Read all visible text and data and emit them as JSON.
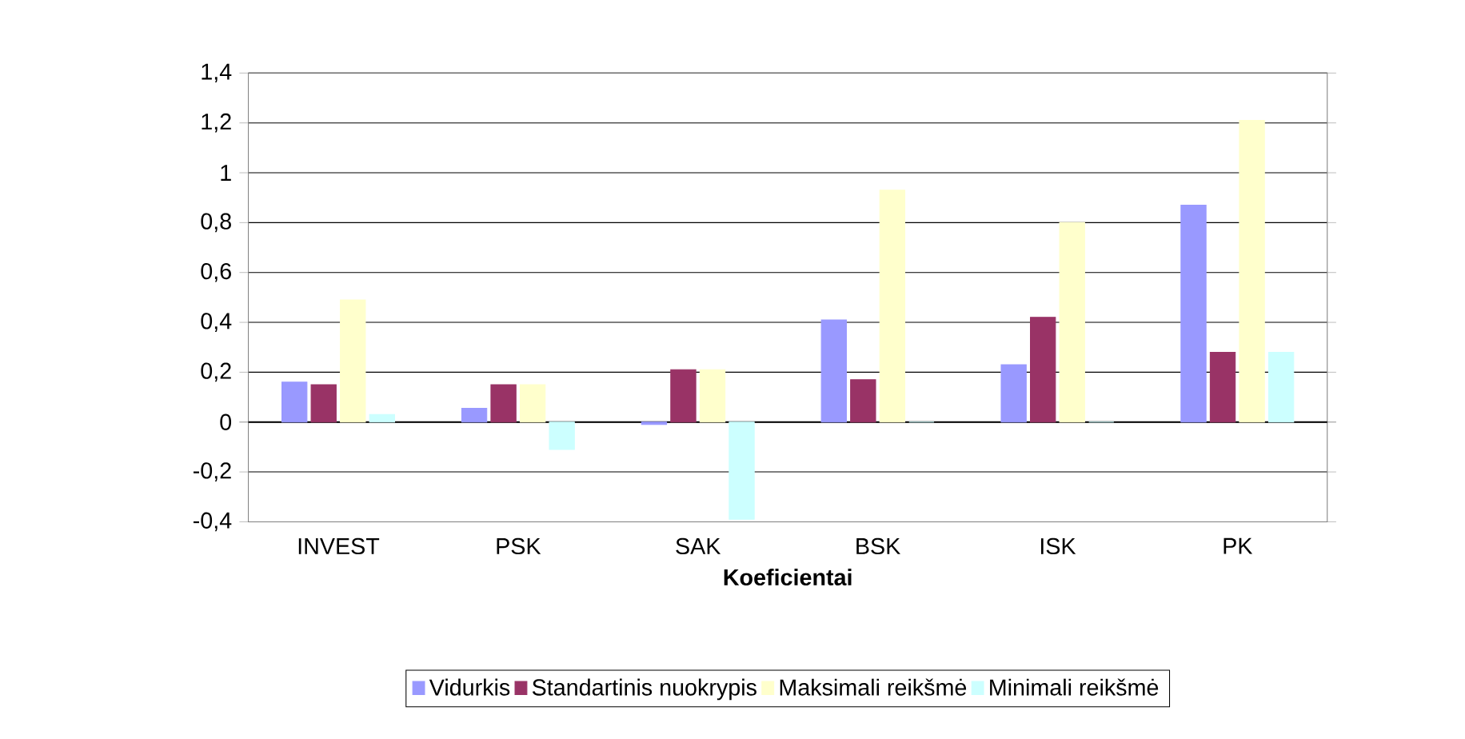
{
  "chart_data": {
    "type": "bar",
    "xlabel": "Koeficientai",
    "categories": [
      "INVEST",
      "PSK",
      "SAK",
      "BSK",
      "ISK",
      "PK"
    ],
    "series": [
      {
        "name": "Vidurkis",
        "color": "#9999ff",
        "values": [
          0.16,
          0.055,
          -0.01,
          0.41,
          0.23,
          0.87
        ]
      },
      {
        "name": "Standartinis nuokrypis",
        "color": "#993366",
        "values": [
          0.15,
          0.15,
          0.21,
          0.17,
          0.42,
          0.28
        ]
      },
      {
        "name": "Maksimali reikšmė",
        "color": "#ffffcc",
        "values": [
          0.49,
          0.15,
          0.21,
          0.93,
          0.8,
          1.21
        ]
      },
      {
        "name": "Minimali reikšmė",
        "color": "#ccffff",
        "values": [
          0.03,
          -0.11,
          -0.39,
          0,
          0,
          0.28
        ]
      }
    ],
    "ylim": [
      -0.4,
      1.4
    ],
    "yticks": [
      {
        "value": -0.4,
        "label": "-0,4"
      },
      {
        "value": -0.2,
        "label": "-0,2"
      },
      0,
      {
        "value": 0.2,
        "label": "0,2"
      },
      {
        "value": 0.4,
        "label": "0,4"
      },
      {
        "value": 0.6,
        "label": "0,6"
      },
      {
        "value": 0.8,
        "label": "0,8"
      },
      1,
      {
        "value": 1.2,
        "label": "1,2"
      },
      {
        "value": 1.4,
        "label": "1,4"
      }
    ],
    "grid": "y",
    "legend": "bottom"
  }
}
